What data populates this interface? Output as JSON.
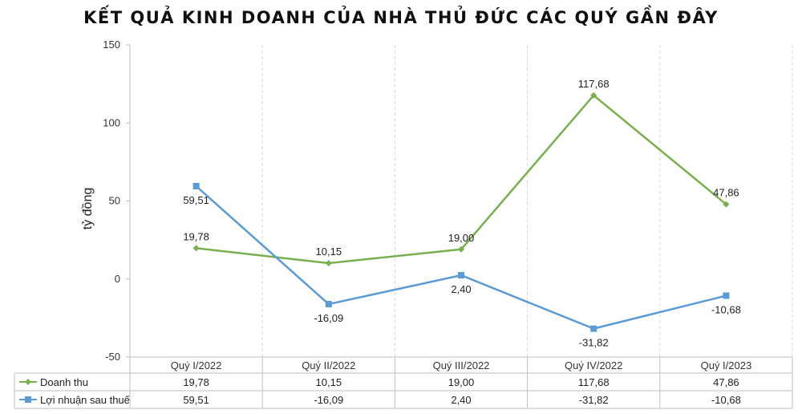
{
  "chart_data": {
    "type": "line",
    "title": "KẾT QUẢ KINH DOANH CỦA NHÀ THỦ ĐỨC CÁC QUÝ GẦN ĐÂY",
    "ylabel": "tỷ đồng",
    "xlabel": "",
    "ylim": [
      -50,
      150
    ],
    "yticks": [
      -50,
      0,
      50,
      100,
      150
    ],
    "ytick_labels": [
      "-50",
      "0",
      "50",
      "100",
      "150"
    ],
    "categories": [
      "Quý I/2022",
      "Quý II/2022",
      "Quý III/2022",
      "Quý IV/2022",
      "Quý I/2023"
    ],
    "grid": "vertical",
    "legend": "data-table-bottom",
    "series": [
      {
        "name": "Doanh thu",
        "color": "#78b04e",
        "marker": "diamond",
        "values": [
          19.78,
          10.15,
          19.0,
          117.68,
          47.86
        ],
        "labels": [
          "19,78",
          "10,15",
          "19,00",
          "117,68",
          "47,86"
        ],
        "label_positions": [
          "above",
          "above",
          "above",
          "above",
          "above"
        ]
      },
      {
        "name": "Lợi nhuận sau thuế",
        "color": "#5b9bd5",
        "marker": "square",
        "values": [
          59.51,
          -16.09,
          2.4,
          -31.82,
          -10.68
        ],
        "labels": [
          "59,51",
          "-16,09",
          "2,40",
          "-31,82",
          "-10,68"
        ],
        "label_positions": [
          "below",
          "below",
          "below",
          "below",
          "below"
        ]
      }
    ]
  }
}
